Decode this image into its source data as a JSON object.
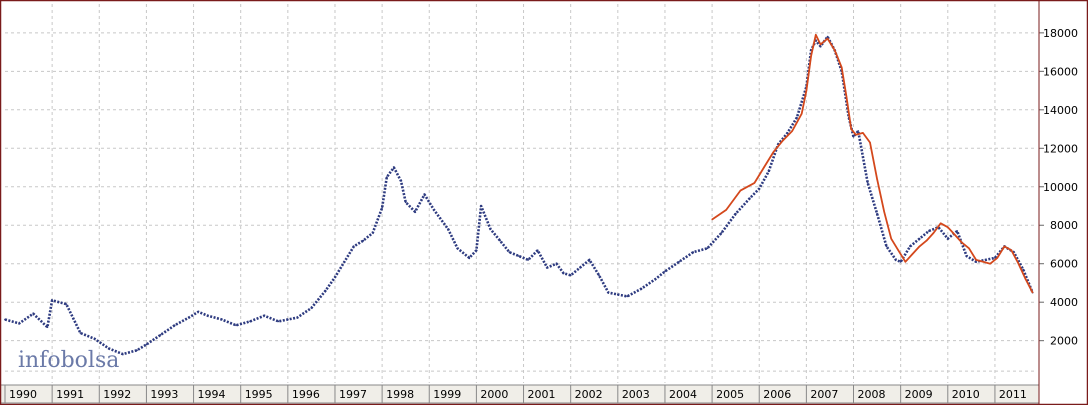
{
  "brand": {
    "logo": "infobolsa"
  },
  "colors": {
    "background": "#ffffff",
    "frame": "#7a1b1b",
    "grid": "#c8c8c8",
    "series_blue": "#2e3b80",
    "series_orange": "#d4481c",
    "axis_strip": "#f0eee8"
  },
  "chart_data": {
    "type": "line",
    "title": "",
    "xlabel": "",
    "ylabel": "",
    "xlim": [
      1990.0,
      2011.85
    ],
    "ylim": [
      -200,
      19500
    ],
    "grid": true,
    "y_axis_side": "right",
    "x_tick_labels": [
      "1990",
      "1991",
      "1992",
      "1993",
      "1994",
      "1995",
      "1996",
      "1997",
      "1998",
      "1999",
      "2000",
      "2001",
      "2002",
      "2003",
      "2004",
      "2005",
      "2006",
      "2007",
      "2008",
      "2009",
      "2010",
      "2011"
    ],
    "y_tick_labels": [
      {
        "value": 2000,
        "label": "2000"
      },
      {
        "value": 4000,
        "label": "4000"
      },
      {
        "value": 6000,
        "label": "6000"
      },
      {
        "value": 8000,
        "label": "8000"
      },
      {
        "value": 10000,
        "label": "10000"
      },
      {
        "value": 12000,
        "label": "12000"
      },
      {
        "value": 14000,
        "label": "14000"
      },
      {
        "value": 16000,
        "label": "16000"
      },
      {
        "value": 18000,
        "label": "18000"
      }
    ],
    "series": [
      {
        "style": "dotted-dark-blue",
        "color": "#2e3b80",
        "x": [
          1990.0,
          1990.3,
          1990.6,
          1990.9,
          1991.0,
          1991.3,
          1991.6,
          1991.9,
          1992.2,
          1992.5,
          1992.8,
          1993.0,
          1993.3,
          1993.6,
          1993.9,
          1994.1,
          1994.3,
          1994.6,
          1994.9,
          1995.2,
          1995.5,
          1995.8,
          1996.0,
          1996.2,
          1996.5,
          1996.8,
          1997.0,
          1997.2,
          1997.4,
          1997.6,
          1997.8,
          1998.0,
          1998.1,
          1998.25,
          1998.4,
          1998.5,
          1998.7,
          1998.9,
          1999.1,
          1999.4,
          1999.6,
          1999.85,
          2000.0,
          2000.1,
          2000.3,
          2000.5,
          2000.7,
          2000.9,
          2001.1,
          2001.3,
          2001.5,
          2001.7,
          2001.85,
          2002.0,
          2002.2,
          2002.4,
          2002.6,
          2002.8,
          2003.0,
          2003.2,
          2003.5,
          2003.8,
          2004.0,
          2004.3,
          2004.6,
          2004.9,
          2005.2,
          2005.5,
          2005.8,
          2006.0,
          2006.2,
          2006.4,
          2006.6,
          2006.8,
          2007.0,
          2007.1,
          2007.2,
          2007.3,
          2007.45,
          2007.6,
          2007.75,
          2007.9,
          2008.0,
          2008.1,
          2008.3,
          2008.5,
          2008.7,
          2008.9,
          2009.0,
          2009.2,
          2009.4,
          2009.6,
          2009.8,
          2010.0,
          2010.2,
          2010.4,
          2010.6,
          2010.8,
          2011.0,
          2011.2,
          2011.4,
          2011.6,
          2011.8
        ],
        "y": [
          3100,
          2900,
          3400,
          2700,
          4100,
          3900,
          2400,
          2100,
          1600,
          1300,
          1500,
          1800,
          2300,
          2800,
          3200,
          3500,
          3300,
          3100,
          2800,
          3000,
          3300,
          3000,
          3100,
          3200,
          3700,
          4600,
          5300,
          6100,
          6900,
          7200,
          7600,
          8900,
          10500,
          11000,
          10300,
          9200,
          8700,
          9600,
          8800,
          7800,
          6800,
          6300,
          6700,
          9000,
          7800,
          7200,
          6600,
          6400,
          6200,
          6700,
          5800,
          6000,
          5500,
          5400,
          5800,
          6200,
          5400,
          4500,
          4400,
          4300,
          4700,
          5200,
          5600,
          6100,
          6600,
          6800,
          7600,
          8600,
          9400,
          9900,
          10800,
          12200,
          12800,
          13600,
          15200,
          17100,
          17600,
          17300,
          17800,
          17100,
          16000,
          13600,
          12600,
          12900,
          10200,
          8600,
          6900,
          6200,
          6100,
          6900,
          7300,
          7700,
          7900,
          7300,
          7700,
          6400,
          6100,
          6200,
          6300,
          6900,
          6600,
          5700,
          4500
        ]
      },
      {
        "style": "solid-orange",
        "color": "#d4481c",
        "x": [
          2005.0,
          2005.3,
          2005.6,
          2005.9,
          2006.1,
          2006.3,
          2006.5,
          2006.7,
          2006.9,
          2007.0,
          2007.1,
          2007.2,
          2007.3,
          2007.45,
          2007.6,
          2007.75,
          2007.85,
          2007.95,
          2008.05,
          2008.2,
          2008.35,
          2008.5,
          2008.65,
          2008.8,
          2008.95,
          2009.1,
          2009.25,
          2009.4,
          2009.55,
          2009.7,
          2009.85,
          2010.0,
          2010.15,
          2010.3,
          2010.45,
          2010.6,
          2010.75,
          2010.9,
          2011.05,
          2011.2,
          2011.35,
          2011.5,
          2011.65,
          2011.8
        ],
        "y": [
          8300,
          8800,
          9800,
          10200,
          11000,
          11800,
          12400,
          12900,
          13800,
          15000,
          16800,
          17900,
          17400,
          17700,
          17100,
          16200,
          14700,
          13000,
          12700,
          12800,
          12300,
          10400,
          8700,
          7300,
          6700,
          6100,
          6500,
          6900,
          7200,
          7600,
          8100,
          7900,
          7500,
          7100,
          6800,
          6200,
          6100,
          6000,
          6300,
          6900,
          6700,
          6000,
          5200,
          4500
        ]
      }
    ]
  }
}
